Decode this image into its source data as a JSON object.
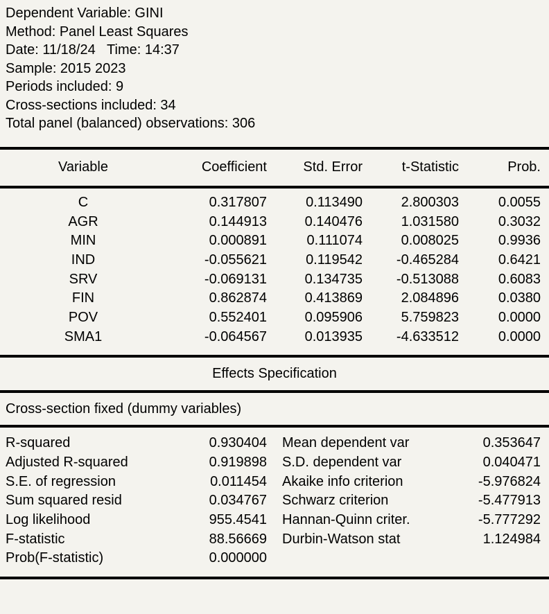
{
  "header": {
    "lines": [
      "Dependent Variable: GINI",
      "Method: Panel Least Squares",
      "Date: 11/18/24   Time: 14:37",
      "Sample: 2015 2023",
      "Periods included: 9",
      "Cross-sections included: 34",
      "Total panel (balanced) observations: 306"
    ]
  },
  "coefficients_table": {
    "columns": [
      "Variable",
      "Coefficient",
      "Std. Error",
      "t-Statistic",
      "Prob."
    ],
    "rows": [
      {
        "variable": "C",
        "coefficient": "0.317807",
        "std_error": "0.113490",
        "t_statistic": "2.800303",
        "prob": "0.0055"
      },
      {
        "variable": "AGR",
        "coefficient": "0.144913",
        "std_error": "0.140476",
        "t_statistic": "1.031580",
        "prob": "0.3032"
      },
      {
        "variable": "MIN",
        "coefficient": "0.000891",
        "std_error": "0.111074",
        "t_statistic": "0.008025",
        "prob": "0.9936"
      },
      {
        "variable": "IND",
        "coefficient": "-0.055621",
        "std_error": "0.119542",
        "t_statistic": "-0.465284",
        "prob": "0.6421"
      },
      {
        "variable": "SRV",
        "coefficient": "-0.069131",
        "std_error": "0.134735",
        "t_statistic": "-0.513088",
        "prob": "0.6083"
      },
      {
        "variable": "FIN",
        "coefficient": "0.862874",
        "std_error": "0.413869",
        "t_statistic": "2.084896",
        "prob": "0.0380"
      },
      {
        "variable": "POV",
        "coefficient": "0.552401",
        "std_error": "0.095906",
        "t_statistic": "5.759823",
        "prob": "0.0000"
      },
      {
        "variable": "SMA1",
        "coefficient": "-0.064567",
        "std_error": "0.013935",
        "t_statistic": "-4.633512",
        "prob": "0.0000"
      }
    ]
  },
  "effects": {
    "title": "Effects Specification",
    "note": "Cross-section fixed (dummy variables)"
  },
  "summary": {
    "rows": [
      {
        "left_label": "R-squared",
        "left_value": "0.930404",
        "right_label": "Mean dependent var",
        "right_value": "0.353647"
      },
      {
        "left_label": "Adjusted R-squared",
        "left_value": "0.919898",
        "right_label": "S.D. dependent var",
        "right_value": "0.040471"
      },
      {
        "left_label": "S.E. of regression",
        "left_value": "0.011454",
        "right_label": "Akaike info criterion",
        "right_value": "-5.976824"
      },
      {
        "left_label": "Sum squared resid",
        "left_value": "0.034767",
        "right_label": "Schwarz criterion",
        "right_value": "-5.477913"
      },
      {
        "left_label": "Log likelihood",
        "left_value": "955.4541",
        "right_label": "Hannan-Quinn criter.",
        "right_value": "-5.777292"
      },
      {
        "left_label": "F-statistic",
        "left_value": "88.56669",
        "right_label": "Durbin-Watson stat",
        "right_value": "1.124984"
      },
      {
        "left_label": "Prob(F-statistic)",
        "left_value": "0.000000",
        "right_label": "",
        "right_value": ""
      }
    ]
  },
  "colors": {
    "background": "#f4f3ee",
    "text": "#000000",
    "rule": "#000000"
  }
}
